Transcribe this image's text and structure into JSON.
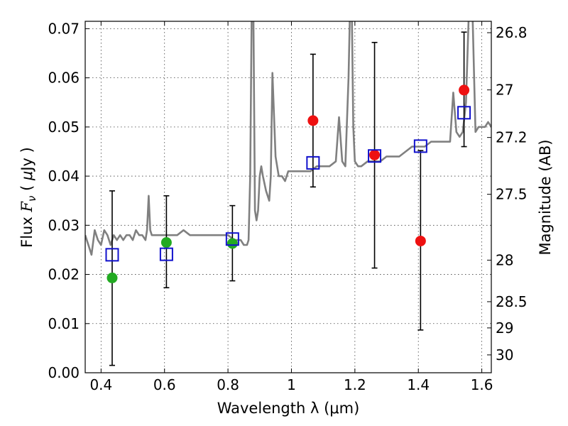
{
  "chart_data": {
    "type": "scatter",
    "title": "",
    "xlabel": "Wavelength  λ (μm)",
    "ylabel": "Flux  F_ν ( μJy )",
    "ylabel_parts": {
      "pre": "Flux  ",
      "var": "F",
      "sub": "ν",
      "mid": "  ( ",
      "mu": "μ",
      "post": "Jy )"
    },
    "y2label": "Magnitude (AB)",
    "xlim": [
      0.35,
      1.63
    ],
    "ylim": [
      0.0,
      0.0715
    ],
    "grid": true,
    "x_ticks": [
      {
        "value": 0.4,
        "label": "0.4"
      },
      {
        "value": 0.6,
        "label": "0.6"
      },
      {
        "value": 0.8,
        "label": "0.8"
      },
      {
        "value": 1.0,
        "label": "1"
      },
      {
        "value": 1.2,
        "label": "1.2"
      },
      {
        "value": 1.4,
        "label": "1.4"
      },
      {
        "value": 1.6,
        "label": "1.6"
      }
    ],
    "y_ticks": [
      {
        "value": 0.0,
        "label": "0.00"
      },
      {
        "value": 0.01,
        "label": "0.01"
      },
      {
        "value": 0.02,
        "label": "0.02"
      },
      {
        "value": 0.03,
        "label": "0.03"
      },
      {
        "value": 0.04,
        "label": "0.04"
      },
      {
        "value": 0.05,
        "label": "0.05"
      },
      {
        "value": 0.06,
        "label": "0.06"
      },
      {
        "value": 0.07,
        "label": "0.07"
      }
    ],
    "y2_ticks": [
      {
        "value": 26.8,
        "label": "26.8"
      },
      {
        "value": 27.0,
        "label": "27"
      },
      {
        "value": 27.2,
        "label": "27.2"
      },
      {
        "value": 27.5,
        "label": "27.5"
      },
      {
        "value": 28.0,
        "label": "28"
      },
      {
        "value": 28.5,
        "label": "28.5"
      },
      {
        "value": 29.0,
        "label": "29"
      },
      {
        "value": 30.0,
        "label": "30"
      }
    ],
    "colors": {
      "model": "#808080",
      "optical": "#22aa22",
      "nir": "#ee1111",
      "synthetic": "#1111cc",
      "errorbar": "#000000"
    },
    "series": [
      {
        "name": "model spectrum",
        "kind": "line",
        "x": [
          0.35,
          0.36,
          0.37,
          0.38,
          0.39,
          0.4,
          0.41,
          0.42,
          0.43,
          0.44,
          0.45,
          0.46,
          0.47,
          0.48,
          0.49,
          0.5,
          0.51,
          0.52,
          0.53,
          0.54,
          0.545,
          0.55,
          0.555,
          0.56,
          0.58,
          0.6,
          0.62,
          0.64,
          0.66,
          0.68,
          0.7,
          0.72,
          0.74,
          0.76,
          0.78,
          0.8,
          0.82,
          0.84,
          0.85,
          0.86,
          0.865,
          0.87,
          0.875,
          0.88,
          0.885,
          0.89,
          0.895,
          0.9,
          0.905,
          0.91,
          0.92,
          0.93,
          0.935,
          0.94,
          0.95,
          0.96,
          0.97,
          0.98,
          0.99,
          1.0,
          1.02,
          1.04,
          1.06,
          1.08,
          1.1,
          1.12,
          1.14,
          1.15,
          1.16,
          1.17,
          1.18,
          1.185,
          1.19,
          1.195,
          1.2,
          1.21,
          1.22,
          1.24,
          1.26,
          1.28,
          1.3,
          1.32,
          1.34,
          1.36,
          1.38,
          1.4,
          1.42,
          1.44,
          1.46,
          1.48,
          1.5,
          1.51,
          1.52,
          1.53,
          1.54,
          1.55,
          1.56,
          1.57,
          1.58,
          1.59,
          1.6,
          1.61,
          1.62,
          1.63
        ],
        "y": [
          0.028,
          0.026,
          0.024,
          0.029,
          0.027,
          0.026,
          0.029,
          0.028,
          0.026,
          0.028,
          0.027,
          0.028,
          0.027,
          0.028,
          0.028,
          0.027,
          0.029,
          0.028,
          0.028,
          0.027,
          0.029,
          0.036,
          0.029,
          0.028,
          0.028,
          0.028,
          0.028,
          0.028,
          0.029,
          0.028,
          0.028,
          0.028,
          0.028,
          0.028,
          0.028,
          0.028,
          0.027,
          0.027,
          0.026,
          0.026,
          0.027,
          0.04,
          0.075,
          0.075,
          0.033,
          0.031,
          0.033,
          0.04,
          0.042,
          0.04,
          0.037,
          0.035,
          0.04,
          0.061,
          0.044,
          0.04,
          0.04,
          0.039,
          0.041,
          0.041,
          0.041,
          0.041,
          0.041,
          0.042,
          0.042,
          0.042,
          0.043,
          0.052,
          0.043,
          0.042,
          0.06,
          0.075,
          0.075,
          0.05,
          0.043,
          0.042,
          0.042,
          0.043,
          0.043,
          0.043,
          0.044,
          0.044,
          0.044,
          0.045,
          0.046,
          0.046,
          0.046,
          0.047,
          0.047,
          0.047,
          0.047,
          0.057,
          0.049,
          0.048,
          0.049,
          0.055,
          0.075,
          0.075,
          0.049,
          0.05,
          0.05,
          0.05,
          0.051,
          0.05
        ]
      },
      {
        "name": "optical photometry",
        "kind": "circle",
        "points": [
          {
            "x": 0.435,
            "y": 0.0193,
            "err_lo": 0.0015,
            "err_hi": 0.037
          },
          {
            "x": 0.606,
            "y": 0.0265,
            "err_lo": 0.0173,
            "err_hi": 0.036
          },
          {
            "x": 0.814,
            "y": 0.0263,
            "err_lo": 0.0187,
            "err_hi": 0.034
          }
        ]
      },
      {
        "name": "near-infrared photometry",
        "kind": "circle",
        "points": [
          {
            "x": 1.068,
            "y": 0.0513,
            "err_lo": 0.0378,
            "err_hi": 0.0648
          },
          {
            "x": 1.262,
            "y": 0.0443,
            "err_lo": 0.0213,
            "err_hi": 0.0672
          },
          {
            "x": 1.407,
            "y": 0.0268,
            "err_lo": 0.0087,
            "err_hi": 0.0452
          },
          {
            "x": 1.544,
            "y": 0.0575,
            "err_lo": 0.046,
            "err_hi": 0.0693
          }
        ]
      },
      {
        "name": "synthetic model photometry",
        "kind": "square",
        "points": [
          {
            "x": 0.435,
            "y": 0.024
          },
          {
            "x": 0.606,
            "y": 0.0241
          },
          {
            "x": 0.814,
            "y": 0.0272
          },
          {
            "x": 1.068,
            "y": 0.0427
          },
          {
            "x": 1.262,
            "y": 0.0441
          },
          {
            "x": 1.407,
            "y": 0.0461
          },
          {
            "x": 1.544,
            "y": 0.0529
          }
        ]
      }
    ]
  }
}
